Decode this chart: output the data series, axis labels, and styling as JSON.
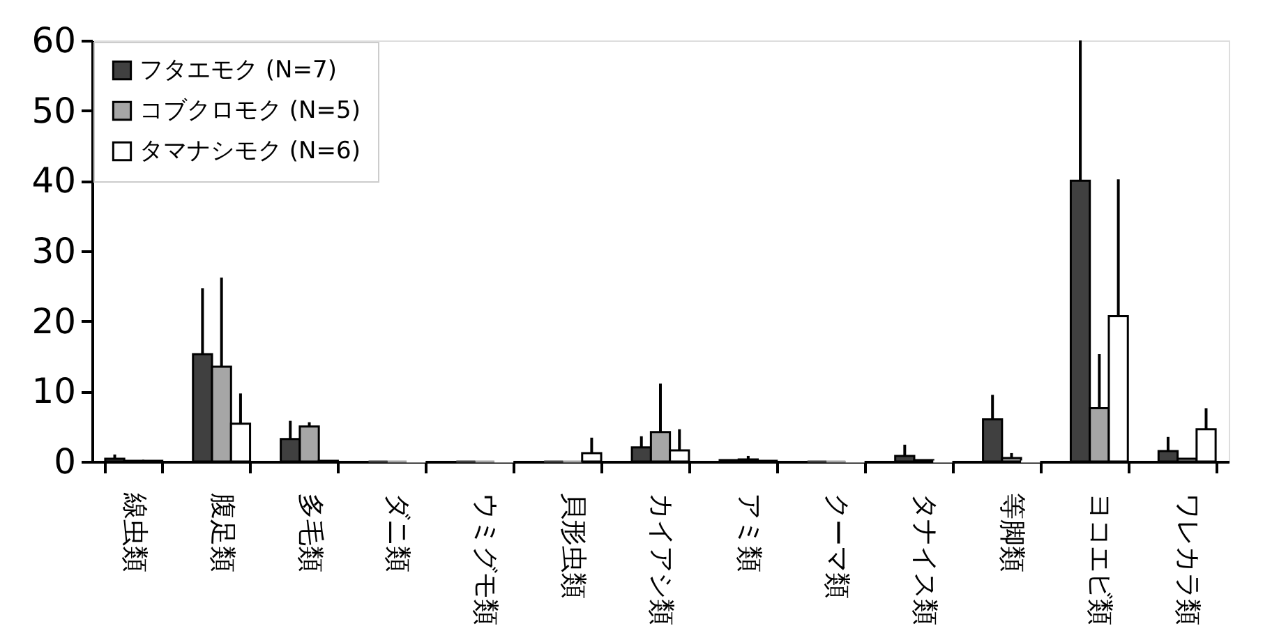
{
  "chart_data": {
    "type": "bar",
    "categories": [
      "線虫類",
      "腹足類",
      "多毛類",
      "ダニ類",
      "ウミグモ類",
      "貝形虫類",
      "カイアシ類",
      "アミ類",
      "クーマ類",
      "タナイス類",
      "等脚類",
      "ヨコエビ類",
      "ワレカラ類"
    ],
    "series": [
      {
        "name": "フタエモク (N=7)",
        "color": "#404040",
        "values": [
          0.4,
          15.3,
          3.2,
          0,
          0,
          0,
          2.0,
          0.2,
          0,
          0.8,
          6.0,
          40.0,
          1.5
        ],
        "errors": [
          [
            0.4,
            1.0
          ],
          [
            15.3,
            24.7
          ],
          [
            3.2,
            5.8
          ],
          null,
          null,
          null,
          [
            2.0,
            3.6
          ],
          null,
          null,
          [
            0.8,
            2.4
          ],
          [
            6.0,
            9.5
          ],
          [
            40.0,
            60
          ],
          [
            1.5,
            3.5
          ]
        ]
      },
      {
        "name": "コブクロモク (N=5)",
        "color": "#a6a6a6",
        "values": [
          0.1,
          13.5,
          5.0,
          0,
          0,
          0,
          4.2,
          0.3,
          0,
          0.2,
          0.5,
          7.6,
          0.4
        ],
        "errors": [
          null,
          [
            13.5,
            26.2
          ],
          [
            5.0,
            5.6
          ],
          null,
          null,
          null,
          [
            4.2,
            11.1
          ],
          [
            0.3,
            0.8
          ],
          null,
          null,
          [
            0.5,
            1.2
          ],
          [
            7.6,
            15.3
          ],
          null
        ]
      },
      {
        "name": "タマナシモク (N=6)",
        "color": "#ffffff",
        "values": [
          0.1,
          5.4,
          0.1,
          0,
          0,
          1.2,
          1.6,
          0.1,
          0,
          0,
          0,
          20.7,
          4.6
        ],
        "errors": [
          null,
          [
            5.4,
            9.7
          ],
          null,
          null,
          null,
          [
            1.2,
            3.4
          ],
          [
            1.6,
            4.6
          ],
          null,
          null,
          null,
          null,
          [
            20.7,
            40.2
          ],
          [
            4.6,
            7.6
          ]
        ]
      }
    ],
    "ylim": [
      0,
      60
    ],
    "yticks": [
      0,
      10,
      20,
      30,
      40,
      50,
      60
    ],
    "grid": false,
    "legend": "top left"
  }
}
